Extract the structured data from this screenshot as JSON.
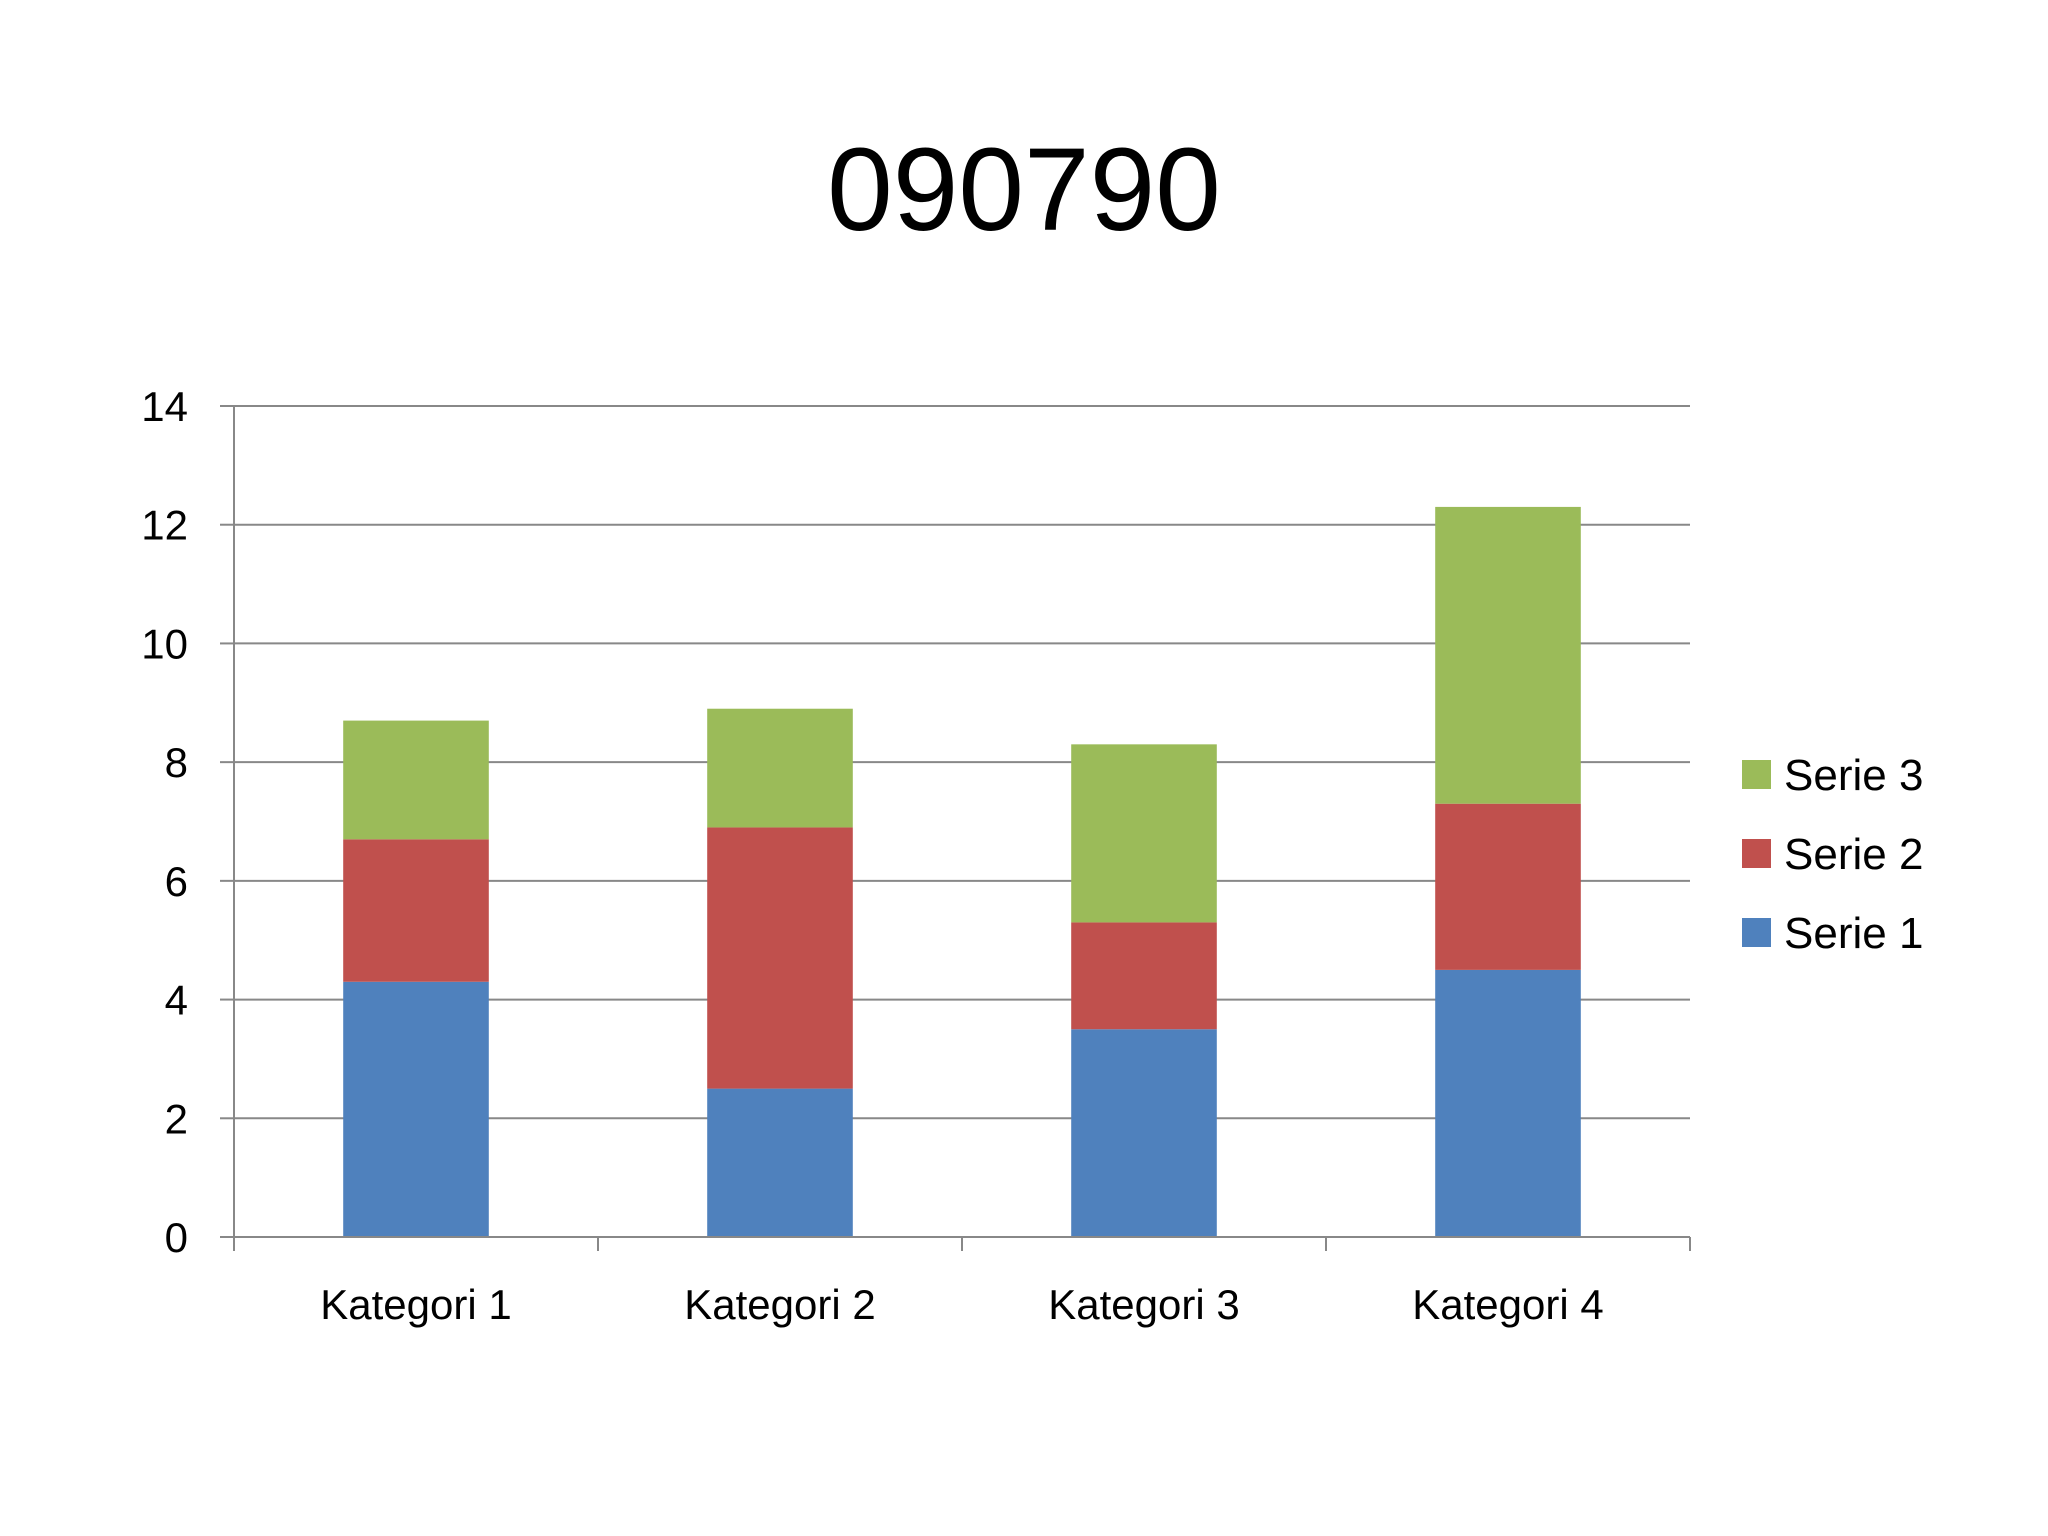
{
  "chart_data": {
    "type": "bar",
    "stacked": true,
    "title": "090790",
    "xlabel": "",
    "ylabel": "",
    "categories": [
      "Kategori 1",
      "Kategori 2",
      "Kategori 3",
      "Kategori 4"
    ],
    "series": [
      {
        "name": "Serie 1",
        "color": "#4F81BD",
        "values": [
          4.3,
          2.5,
          3.5,
          4.5
        ]
      },
      {
        "name": "Serie 2",
        "color": "#C0504D",
        "values": [
          2.4,
          4.4,
          1.8,
          2.8
        ]
      },
      {
        "name": "Serie 3",
        "color": "#9BBB59",
        "values": [
          2,
          2,
          3,
          5
        ]
      }
    ],
    "ylim": [
      0,
      14
    ],
    "yticks": [
      "0",
      "2",
      "4",
      "6",
      "8",
      "10",
      "12",
      "14"
    ],
    "grid": true,
    "legend": "right",
    "legend_order": [
      "Serie 3",
      "Serie 2",
      "Serie 1"
    ]
  },
  "colors": {
    "gridline": "#888888",
    "axis": "#888888",
    "background": "#ffffff"
  }
}
